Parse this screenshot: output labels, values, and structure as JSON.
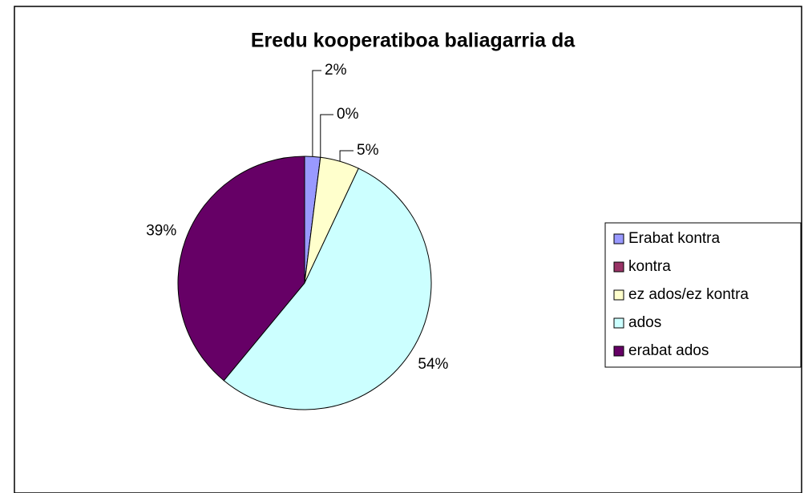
{
  "chart_data": {
    "type": "pie",
    "title": "Eredu kooperatiboa baliagarria da",
    "categories": [
      "Erabat kontra",
      "kontra",
      "ez ados/ez kontra",
      "ados",
      "erabat ados"
    ],
    "values": [
      2,
      0,
      5,
      54,
      39
    ],
    "value_labels": [
      "2%",
      "0%",
      "5%",
      "54%",
      "39%"
    ],
    "colors": [
      "#9999ff",
      "#993366",
      "#ffffcc",
      "#ccffff",
      "#660066"
    ],
    "legend": "right"
  }
}
